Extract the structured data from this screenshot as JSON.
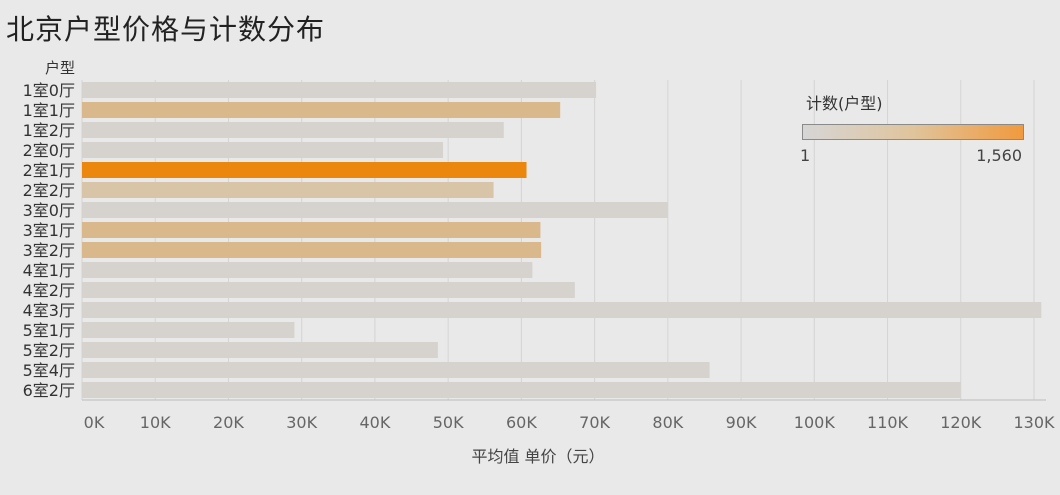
{
  "title": "北京户型价格与计数分布",
  "legend": {
    "title": "计数(户型)",
    "min_label": "1",
    "max_label": "1,560",
    "min_color": "#d6d6d6",
    "max_color": "#f19a3e"
  },
  "chart_data": {
    "type": "bar",
    "orientation": "horizontal",
    "title": "北京户型价格与计数分布",
    "y_header": "户型",
    "xlabel": "平均值 单价（元）",
    "categories": [
      "1室0厅",
      "1室1厅",
      "1室2厅",
      "2室0厅",
      "2室1厅",
      "2室2厅",
      "3室0厅",
      "3室1厅",
      "3室2厅",
      "4室1厅",
      "4室2厅",
      "4室3厅",
      "5室1厅",
      "5室2厅",
      "5室4厅",
      "6室2厅"
    ],
    "values": [
      70200,
      65300,
      57600,
      49300,
      60700,
      56200,
      80000,
      62600,
      62700,
      61500,
      67300,
      131000,
      29000,
      48600,
      85700,
      120000
    ],
    "count_intensity": [
      0.05,
      0.55,
      0.05,
      0.05,
      1.0,
      0.35,
      0.05,
      0.55,
      0.55,
      0.05,
      0.05,
      0.05,
      0.05,
      0.05,
      0.05,
      0.05
    ],
    "xlim": [
      0,
      130000
    ],
    "xticks": [
      0,
      10000,
      20000,
      30000,
      40000,
      50000,
      60000,
      70000,
      80000,
      90000,
      100000,
      110000,
      120000,
      130000
    ],
    "xtick_labels": [
      "0K",
      "10K",
      "20K",
      "30K",
      "40K",
      "50K",
      "60K",
      "70K",
      "80K",
      "90K",
      "100K",
      "110K",
      "120K",
      "130K"
    ],
    "grid": true,
    "legend_position": "top-right"
  }
}
